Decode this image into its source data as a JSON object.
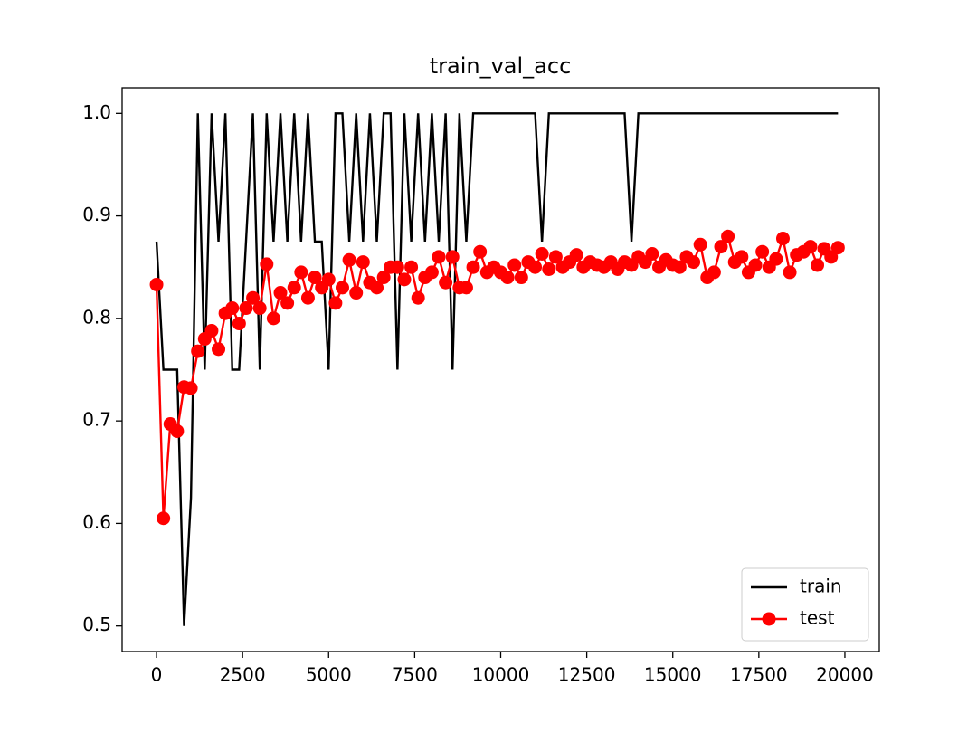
{
  "chart_data": {
    "type": "line",
    "title": "train_val_acc",
    "x": [
      0,
      200,
      400,
      600,
      800,
      1000,
      1200,
      1400,
      1600,
      1800,
      2000,
      2200,
      2400,
      2600,
      2800,
      3000,
      3200,
      3400,
      3600,
      3800,
      4000,
      4200,
      4400,
      4600,
      4800,
      5000,
      5200,
      5400,
      5600,
      5800,
      6000,
      6200,
      6400,
      6600,
      6800,
      7000,
      7200,
      7400,
      7600,
      7800,
      8000,
      8200,
      8400,
      8600,
      8800,
      9000,
      9200,
      9400,
      9600,
      9800,
      10000,
      10200,
      10400,
      10600,
      10800,
      11000,
      11200,
      11400,
      11600,
      11800,
      12000,
      12200,
      12400,
      12600,
      12800,
      13000,
      13200,
      13400,
      13600,
      13800,
      14000,
      14200,
      14400,
      14600,
      14800,
      15000,
      15200,
      15400,
      15600,
      15800,
      16000,
      16200,
      16400,
      16600,
      16800,
      17000,
      17200,
      17400,
      17600,
      17800,
      18000,
      18200,
      18400,
      18600,
      18800,
      19000,
      19200,
      19400,
      19600,
      19800
    ],
    "series": [
      {
        "name": "train",
        "color": "#000000",
        "marker": false,
        "values": [
          0.875,
          0.75,
          0.75,
          0.75,
          0.5,
          0.625,
          1.0,
          0.75,
          1.0,
          0.875,
          1.0,
          0.75,
          0.75,
          0.875,
          1.0,
          0.75,
          1.0,
          0.875,
          1.0,
          0.875,
          1.0,
          0.875,
          1.0,
          0.875,
          0.875,
          0.75,
          1.0,
          1.0,
          0.875,
          1.0,
          0.875,
          1.0,
          0.875,
          1.0,
          1.0,
          0.75,
          1.0,
          0.875,
          1.0,
          0.875,
          1.0,
          0.875,
          1.0,
          0.75,
          1.0,
          0.875,
          1.0,
          1.0,
          1.0,
          1.0,
          1.0,
          1.0,
          1.0,
          1.0,
          1.0,
          1.0,
          0.875,
          1.0,
          1.0,
          1.0,
          1.0,
          1.0,
          1.0,
          1.0,
          1.0,
          1.0,
          1.0,
          1.0,
          1.0,
          0.875,
          1.0,
          1.0,
          1.0,
          1.0,
          1.0,
          1.0,
          1.0,
          1.0,
          1.0,
          1.0,
          1.0,
          1.0,
          1.0,
          1.0,
          1.0,
          1.0,
          1.0,
          1.0,
          1.0,
          1.0,
          1.0,
          1.0,
          1.0,
          1.0,
          1.0,
          1.0,
          1.0,
          1.0,
          1.0,
          1.0
        ]
      },
      {
        "name": "test",
        "color": "#ff0000",
        "marker": true,
        "values": [
          0.833,
          0.605,
          0.697,
          0.69,
          0.733,
          0.732,
          0.768,
          0.78,
          0.788,
          0.77,
          0.805,
          0.81,
          0.795,
          0.81,
          0.82,
          0.81,
          0.853,
          0.8,
          0.825,
          0.815,
          0.83,
          0.845,
          0.82,
          0.84,
          0.83,
          0.838,
          0.815,
          0.83,
          0.857,
          0.825,
          0.855,
          0.835,
          0.83,
          0.84,
          0.85,
          0.85,
          0.838,
          0.85,
          0.82,
          0.84,
          0.845,
          0.86,
          0.835,
          0.86,
          0.83,
          0.83,
          0.85,
          0.865,
          0.845,
          0.85,
          0.845,
          0.84,
          0.852,
          0.84,
          0.855,
          0.85,
          0.863,
          0.848,
          0.86,
          0.85,
          0.855,
          0.862,
          0.85,
          0.855,
          0.852,
          0.85,
          0.855,
          0.848,
          0.855,
          0.852,
          0.86,
          0.855,
          0.863,
          0.85,
          0.857,
          0.852,
          0.85,
          0.86,
          0.855,
          0.872,
          0.84,
          0.845,
          0.87,
          0.88,
          0.855,
          0.86,
          0.845,
          0.852,
          0.865,
          0.85,
          0.858,
          0.878,
          0.845,
          0.862,
          0.865,
          0.87,
          0.852,
          0.868,
          0.86,
          0.869
        ]
      }
    ],
    "xlim": [
      -1000,
      21000
    ],
    "ylim": [
      0.475,
      1.025
    ],
    "xticks": [
      0,
      2500,
      5000,
      7500,
      10000,
      12500,
      15000,
      17500,
      20000
    ],
    "yticks": [
      0.5,
      0.6,
      0.7,
      0.8,
      0.9,
      {
        "value": 1,
        "label": "1.0"
      }
    ],
    "legend": "lower right"
  }
}
